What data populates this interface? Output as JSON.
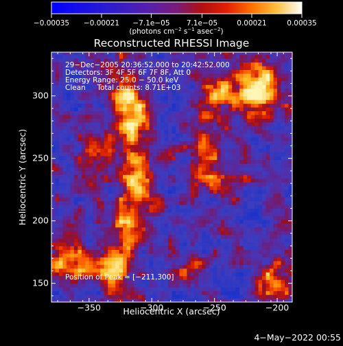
{
  "chart_data": {
    "type": "heatmap",
    "title": "Reconstructed RHESSI Image",
    "xlabel": "Heliocentric X (arcsec)",
    "ylabel": "Heliocentric Y (arcsec)",
    "xlim": [
      -380,
      -188
    ],
    "ylim": [
      135,
      335
    ],
    "x_ticks": [
      -350,
      -300,
      -250,
      -200
    ],
    "y_ticks": [
      150,
      200,
      250,
      300
    ],
    "x_tick_labels": [
      "−350",
      "−300",
      "−250",
      "−200"
    ],
    "y_tick_labels": [
      "150",
      "200",
      "250",
      "300"
    ],
    "colorbar": {
      "range": [
        -0.00035,
        0.00035
      ],
      "ticks": [
        -0.00035,
        -0.00021,
        -7.1e-05,
        7.1e-05,
        0.00021,
        0.00035
      ],
      "tick_labels": [
        "−0.00035",
        "−0.00021",
        "−7.1e−05",
        "7.1e−05",
        "0.00021",
        "0.00035"
      ],
      "units_main": "(photons cm",
      "units_exp1": "−2",
      "units_mid": " s",
      "units_exp2": "−1",
      "units_tail": " asec",
      "units_exp3": "−2",
      "units_end": ")"
    },
    "info_lines": [
      "29−Dec−2005 20:36:52.000 to 20:42:52.000",
      "Detectors: 3F 4F 5F 6F 7F 8F, Att 0",
      "Energy Range: 25.0 − 50.0 keV",
      "Clean     Total counts: 8.71E+03"
    ],
    "peak_label": "Position of Peak = [−211,300]",
    "peak_position": [
      -211,
      300
    ]
  },
  "footer_date": "4−May−2022 00:55"
}
